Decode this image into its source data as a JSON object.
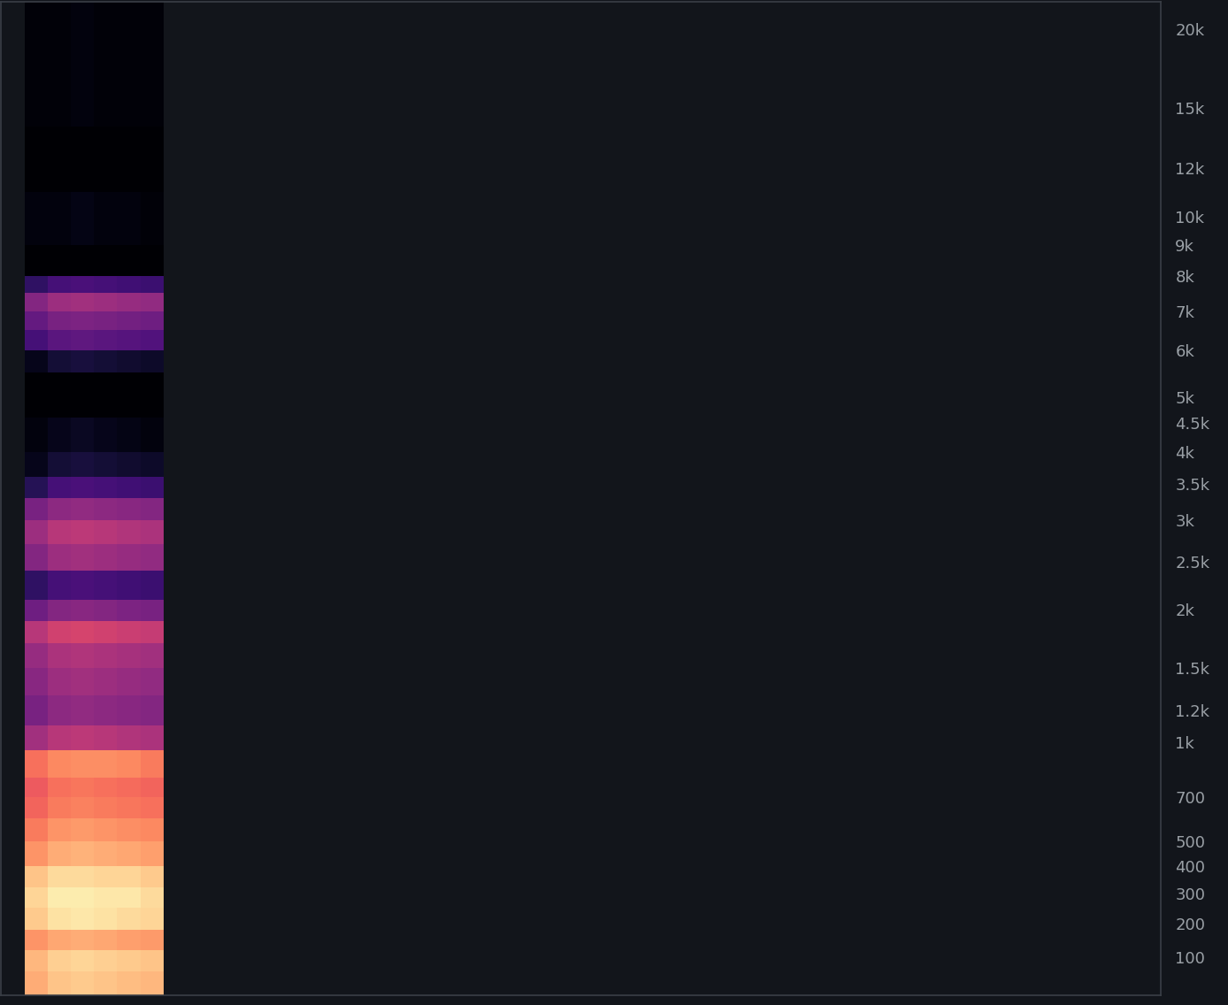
{
  "chart_data": {
    "type": "spectrogram",
    "tick_labels": "y",
    "xlim": [
      0,
      10
    ],
    "ylim": [
      0,
      22050
    ],
    "yticks": [
      100,
      200,
      300,
      400,
      500,
      700,
      {
        "value": 1000,
        "label": "1k"
      },
      {
        "value": 1200,
        "label": "1.2k"
      },
      {
        "value": 1500,
        "label": "1.5k"
      },
      {
        "value": 2000,
        "label": "2k"
      },
      {
        "value": 2500,
        "label": "2.5k"
      },
      {
        "value": 3000,
        "label": "3k"
      },
      {
        "value": 3500,
        "label": "3.5k"
      },
      {
        "value": 4000,
        "label": "4k"
      },
      {
        "value": 4500,
        "label": "4.5k"
      },
      {
        "value": 5000,
        "label": "5k"
      },
      {
        "value": 6000,
        "label": "6k"
      },
      {
        "value": 7000,
        "label": "7k"
      },
      {
        "value": 8000,
        "label": "8k"
      },
      {
        "value": 9000,
        "label": "9k"
      },
      {
        "value": 10000,
        "label": "10k"
      },
      {
        "value": 12000,
        "label": "12k"
      },
      {
        "value": 15000,
        "label": "15k"
      },
      {
        "value": 20000,
        "label": "20k"
      }
    ],
    "time_edges": [
      0.2,
      0.4,
      0.6,
      0.8,
      1.0,
      1.2,
      1.4
    ],
    "frequency_edges": [
      0,
      60,
      120,
      180,
      250,
      320,
      400,
      500,
      600,
      700,
      800,
      950,
      1100,
      1300,
      1500,
      1700,
      1900,
      2100,
      2400,
      2700,
      3000,
      3300,
      3600,
      4000,
      4600,
      5500,
      6000,
      6500,
      7000,
      7500,
      8000,
      9000,
      11000,
      14000,
      22050
    ],
    "color_range": [
      -80,
      0
    ],
    "cells": [
      [
        -14,
        -10,
        -9,
        -10,
        -11,
        -12
      ],
      [
        -12,
        -8,
        -7,
        -8,
        -9,
        -10
      ],
      [
        -18,
        -15,
        -14,
        -15,
        -16,
        -17
      ],
      [
        -9,
        -5,
        -4,
        -5,
        -6,
        -7
      ],
      [
        -7,
        -3,
        -3,
        -4,
        -4,
        -6
      ],
      [
        -10,
        -6,
        -6,
        -7,
        -7,
        -9
      ],
      [
        -18,
        -14,
        -13,
        -14,
        -15,
        -16
      ],
      [
        -22,
        -18,
        -17,
        -18,
        -19,
        -20
      ],
      [
        -26,
        -22,
        -21,
        -22,
        -23,
        -24
      ],
      [
        -28,
        -24,
        -23,
        -24,
        -25,
        -26
      ],
      [
        -24,
        -20,
        -19,
        -19,
        -20,
        -22
      ],
      [
        -44,
        -40,
        -39,
        -40,
        -41,
        -42
      ],
      [
        -52,
        -48,
        -47,
        -48,
        -49,
        -50
      ],
      [
        -49,
        -45,
        -44,
        -45,
        -46,
        -47
      ],
      [
        -46,
        -42,
        -41,
        -42,
        -43,
        -44
      ],
      [
        -40,
        -35,
        -34,
        -35,
        -36,
        -37
      ],
      [
        -54,
        -50,
        -49,
        -50,
        -51,
        -52
      ],
      [
        -66,
        -62,
        -61,
        -62,
        -63,
        -64
      ],
      [
        -50,
        -45,
        -44,
        -45,
        -46,
        -47
      ],
      [
        -45,
        -40,
        -39,
        -40,
        -41,
        -42
      ],
      [
        -52,
        -48,
        -47,
        -48,
        -49,
        -50
      ],
      [
        -68,
        -62,
        -61,
        -62,
        -63,
        -64
      ],
      [
        -76,
        -72,
        -71,
        -72,
        -73,
        -74
      ],
      [
        -78,
        -76,
        -75,
        -76,
        -77,
        -78
      ],
      [
        -80,
        -80,
        -80,
        -80,
        -80,
        -80
      ],
      [
        -76,
        -72,
        -71,
        -72,
        -73,
        -74
      ],
      [
        -62,
        -58,
        -57,
        -58,
        -59,
        -60
      ],
      [
        -56,
        -52,
        -51,
        -52,
        -53,
        -54
      ],
      [
        -50,
        -45,
        -44,
        -45,
        -46,
        -47
      ],
      [
        -66,
        -62,
        -61,
        -62,
        -63,
        -64
      ],
      [
        -80,
        -80,
        -80,
        -80,
        -80,
        -80
      ],
      [
        -78,
        -78,
        -77,
        -78,
        -78,
        -79
      ],
      [
        -80,
        -80,
        -80,
        -80,
        -80,
        -80
      ],
      [
        -79,
        -79,
        -78,
        -79,
        -79,
        -79
      ]
    ]
  }
}
